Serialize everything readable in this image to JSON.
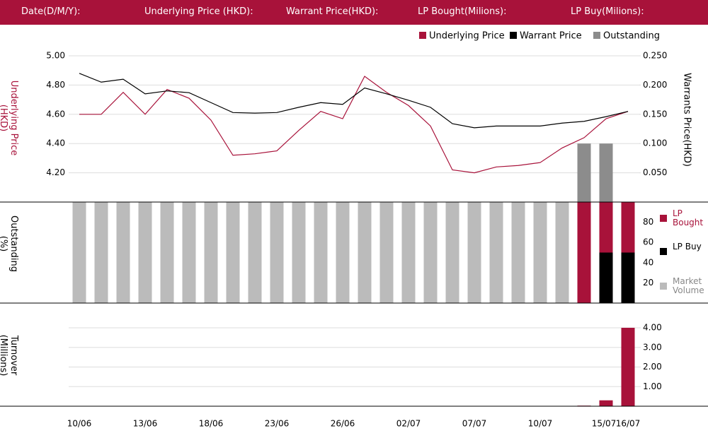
{
  "header": {
    "labels": [
      "Date(D/M/Y):",
      "Underlying Price (HKD):",
      "Warrant  Price(HKD):",
      "LP Bought(Milions):",
      "LP Buy(Milions):"
    ]
  },
  "chart_data": [
    {
      "type": "line",
      "ylabel": "Underlying Price (HKD)",
      "y2label": "Warrants  Price(HKD)",
      "ylim": [
        4.0,
        5.0
      ],
      "yticks": [
        {
          "value": 4.2,
          "label": "4.20"
        },
        {
          "value": 4.4,
          "label": "4.40"
        },
        {
          "value": 4.6,
          "label": "4.60"
        },
        {
          "value": 4.8,
          "label": "4.80"
        },
        {
          "value": 5.0,
          "label": "5.00"
        }
      ],
      "y2lim": [
        0,
        0.25
      ],
      "y2ticks": [
        {
          "value": 0.05,
          "label": "0.050"
        },
        {
          "value": 0.1,
          "label": "0.100"
        },
        {
          "value": 0.15,
          "label": "0.150"
        },
        {
          "value": 0.2,
          "label": "0.200"
        },
        {
          "value": 0.25,
          "label": "0.250"
        }
      ],
      "grid": true,
      "series": [
        {
          "name": "Underlying Price",
          "color": "#a8123a",
          "values": [
            4.6,
            4.6,
            4.75,
            4.6,
            4.77,
            4.71,
            4.56,
            4.32,
            4.33,
            4.35,
            4.49,
            4.62,
            4.57,
            4.86,
            4.75,
            4.66,
            4.52,
            4.22,
            4.2,
            4.24,
            4.25,
            4.27,
            4.37,
            4.44,
            4.57,
            4.62
          ]
        },
        {
          "name": "Warrant  Price",
          "color": "#000000",
          "axis": "y2",
          "values": [
            0.22,
            0.205,
            0.21,
            0.185,
            0.19,
            0.187,
            0.17,
            0.153,
            0.152,
            0.153,
            0.162,
            0.17,
            0.167,
            0.195,
            0.185,
            0.174,
            0.162,
            0.134,
            0.127,
            0.13,
            0.13,
            0.13,
            0.135,
            0.138,
            0.146,
            0.155
          ]
        },
        {
          "name": "Outstanding",
          "color": "#8c8c8c",
          "axis": "y2",
          "type": "bar",
          "values": [
            null,
            null,
            null,
            null,
            null,
            null,
            null,
            null,
            null,
            null,
            null,
            null,
            null,
            null,
            null,
            null,
            null,
            null,
            null,
            null,
            null,
            null,
            null,
            0.1,
            0.1,
            null
          ]
        }
      ]
    },
    {
      "type": "bar",
      "stacked": true,
      "ylabel": "Outstanding (%)",
      "ylim": [
        0,
        100
      ],
      "yticks": [
        20,
        40,
        60,
        80
      ],
      "series": [
        {
          "name": "LP Bought",
          "color": "#a8123a",
          "values": [
            null,
            null,
            null,
            null,
            null,
            null,
            null,
            null,
            null,
            null,
            null,
            null,
            null,
            null,
            null,
            null,
            null,
            null,
            null,
            null,
            null,
            null,
            null,
            100,
            50,
            50
          ]
        },
        {
          "name": "LP Buy",
          "color": "#000000",
          "values": [
            null,
            null,
            null,
            null,
            null,
            null,
            null,
            null,
            null,
            null,
            null,
            null,
            null,
            null,
            null,
            null,
            null,
            null,
            null,
            null,
            null,
            null,
            null,
            null,
            50,
            50
          ]
        },
        {
          "name": "Market Volume",
          "color": "#bbbbbb",
          "values": [
            100,
            100,
            100,
            100,
            100,
            100,
            100,
            100,
            100,
            100,
            100,
            100,
            100,
            100,
            100,
            100,
            100,
            100,
            100,
            100,
            100,
            100,
            100,
            null,
            null,
            null
          ]
        }
      ]
    },
    {
      "type": "bar",
      "ylabel": "Turnover (Millions)",
      "ylim": [
        0,
        4
      ],
      "yticks": [
        {
          "value": 1,
          "label": "1.00"
        },
        {
          "value": 2,
          "label": "2.00"
        },
        {
          "value": 3,
          "label": "3.00"
        },
        {
          "value": 4,
          "label": "4.00"
        }
      ],
      "grid": true,
      "categories": [
        "10/06",
        null,
        null,
        "13/06",
        null,
        null,
        "18/06",
        null,
        null,
        "23/06",
        null,
        null,
        "26/06",
        null,
        null,
        "02/07",
        null,
        null,
        "07/07",
        null,
        null,
        "10/07",
        null,
        null,
        "15/07",
        "16/07"
      ],
      "color": "#a8123a",
      "values": [
        null,
        null,
        null,
        null,
        null,
        null,
        null,
        null,
        null,
        null,
        null,
        null,
        null,
        null,
        null,
        null,
        null,
        null,
        null,
        null,
        null,
        null,
        null,
        0.03,
        0.3,
        4.0
      ]
    }
  ]
}
